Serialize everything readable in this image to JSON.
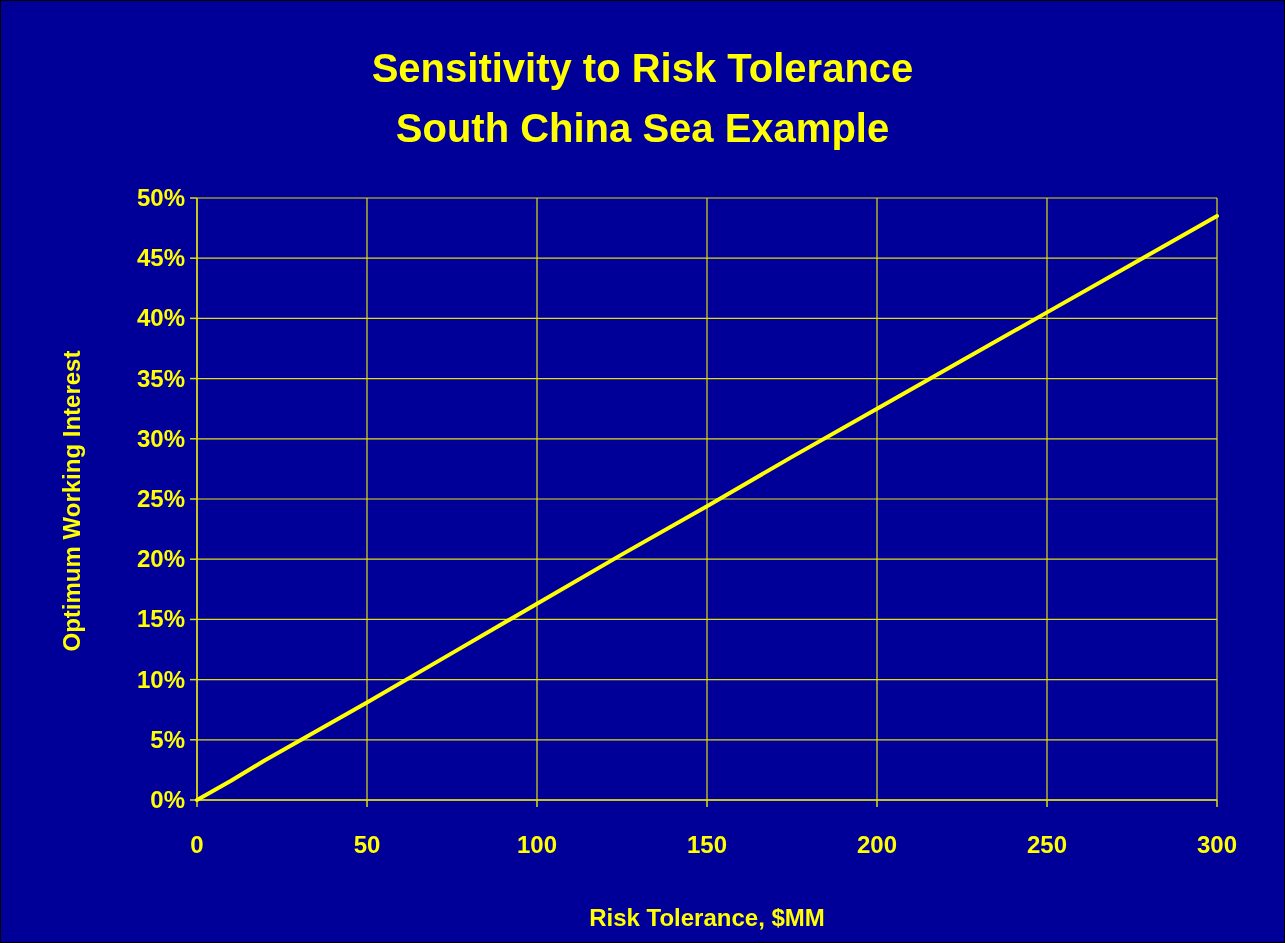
{
  "chart_data": {
    "type": "line",
    "title": "Sensitivity to Risk Tolerance",
    "subtitle": "South China Sea Example",
    "xlabel": "Risk Tolerance, $MM",
    "ylabel": "Optimum Working Interest",
    "x": [
      0,
      10,
      20,
      30,
      40,
      50,
      75,
      100,
      125,
      150,
      175,
      200,
      225,
      250,
      275,
      300
    ],
    "series": [
      {
        "color": "#ffff00",
        "values": [
          0,
          1.6,
          3.3,
          4.9,
          6.5,
          8.1,
          12.2,
          16.3,
          20.4,
          24.4,
          28.5,
          32.5,
          36.5,
          40.5,
          44.5,
          48.5
        ]
      }
    ],
    "xlim": [
      0,
      300
    ],
    "xticks": [
      0,
      50,
      100,
      150,
      200,
      250,
      300
    ],
    "ylim": [
      0,
      50
    ],
    "yticks": [
      {
        "value": 0,
        "label": "0%"
      },
      {
        "value": 5,
        "label": "5%"
      },
      {
        "value": 10,
        "label": "10%"
      },
      {
        "value": 15,
        "label": "15%"
      },
      {
        "value": 20,
        "label": "20%"
      },
      {
        "value": 25,
        "label": "25%"
      },
      {
        "value": 30,
        "label": "30%"
      },
      {
        "value": 35,
        "label": "35%"
      },
      {
        "value": 40,
        "label": "40%"
      },
      {
        "value": 45,
        "label": "45%"
      },
      {
        "value": 50,
        "label": "50%"
      }
    ],
    "grid": true,
    "marker": "none",
    "line_style": "solid"
  }
}
